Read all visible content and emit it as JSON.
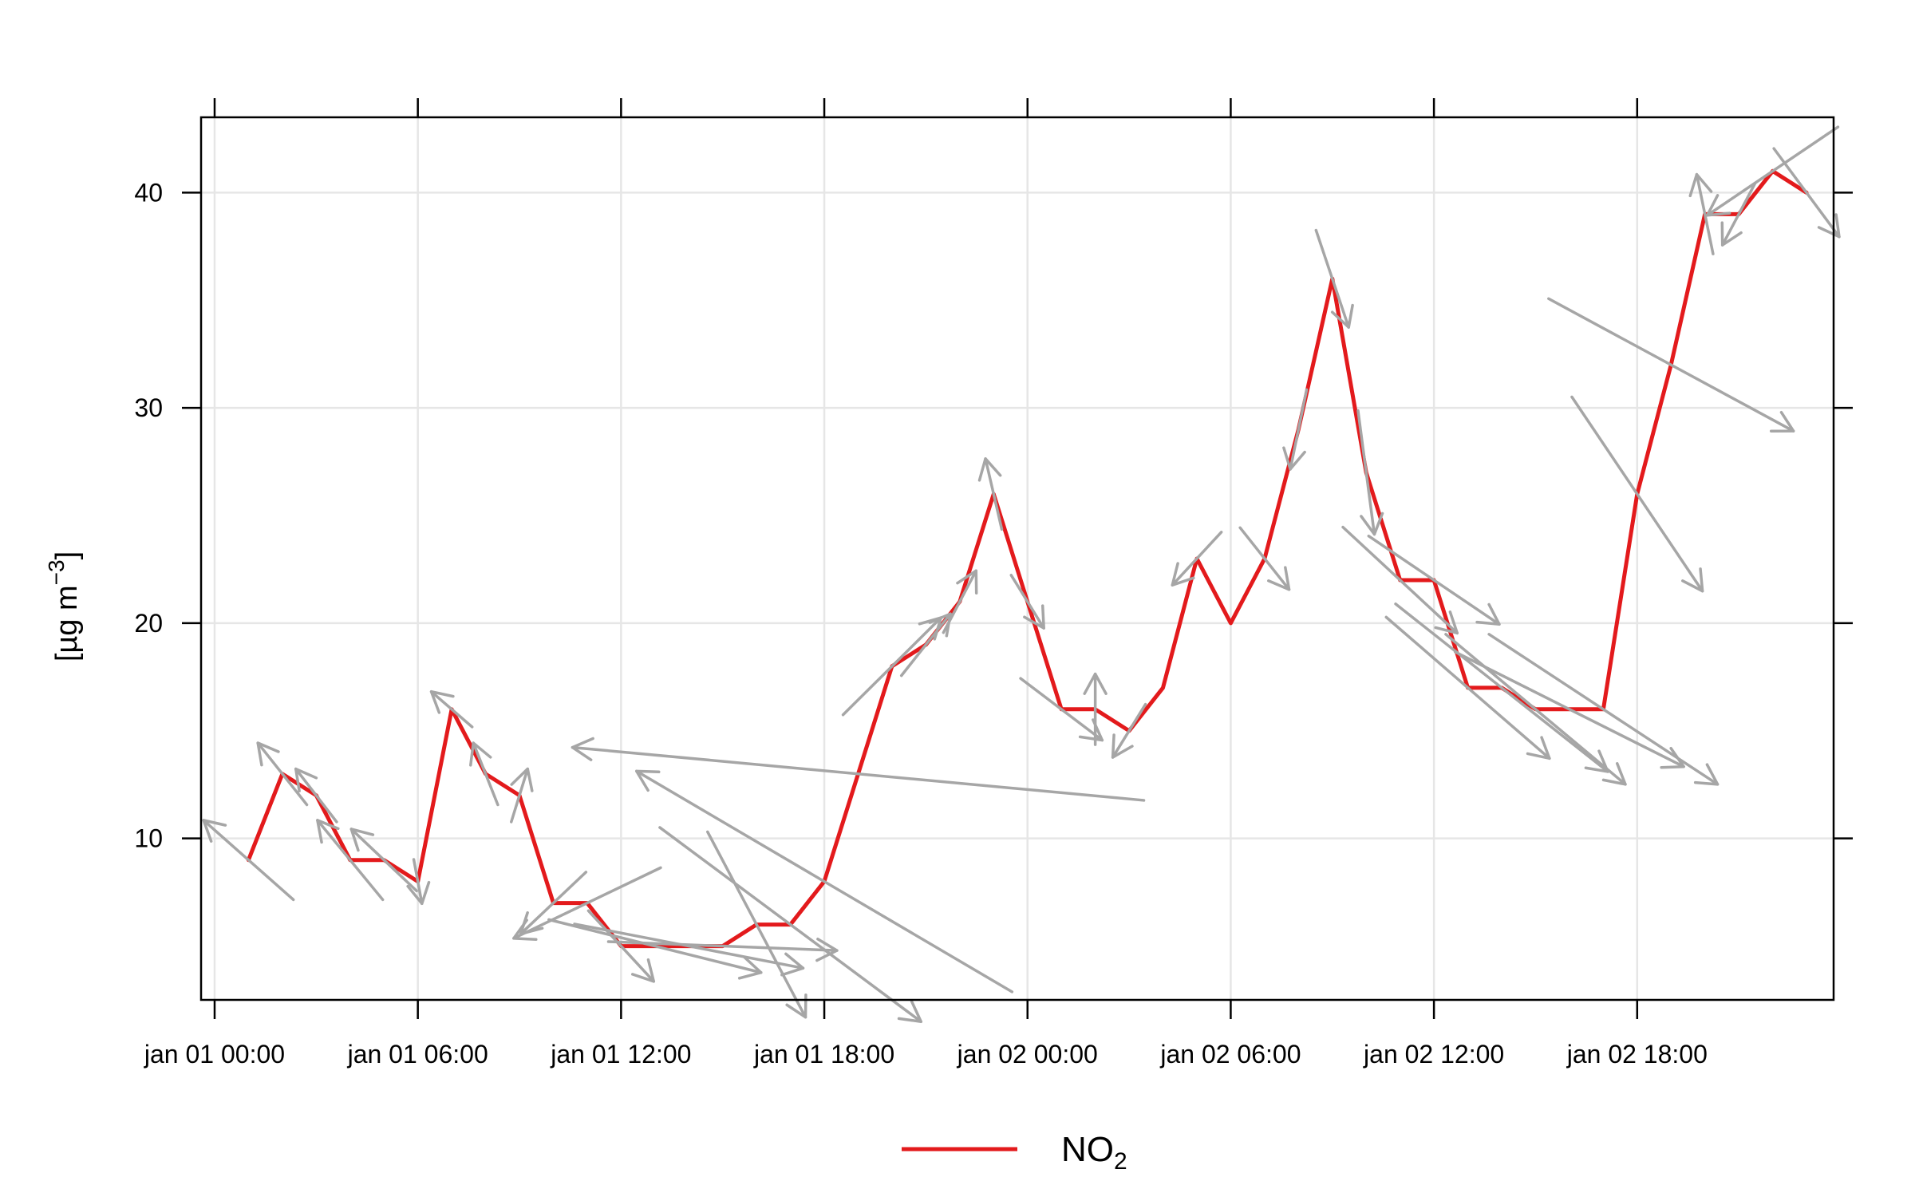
{
  "chart_data": {
    "type": "line",
    "title": "",
    "xlabel": "",
    "ylabel": {
      "prefix": "[µg m",
      "superscript": "−3",
      "suffix": "]"
    },
    "ylim": [
      2.5,
      43.5
    ],
    "yticks": [
      10,
      20,
      30,
      40
    ],
    "ytick_labels": [
      "10",
      "20",
      "30",
      "40"
    ],
    "xlim_hours": [
      -0.4,
      47.8
    ],
    "xticks_hours": [
      0,
      6,
      12,
      18,
      24,
      30,
      36,
      42
    ],
    "xtick_labels": [
      "jan 01 00:00",
      "jan 01 06:00",
      "jan 01 12:00",
      "jan 01 18:00",
      "jan 02 00:00",
      "jan 02 06:00",
      "jan 02 12:00",
      "jan 02 18:00"
    ],
    "grid": true,
    "legend_position": "bottom",
    "colors": {
      "series": "#e31a1c",
      "arrows": "#a6a6a6",
      "grid": "#e6e6e6"
    },
    "series": [
      {
        "name": {
          "main": "NO",
          "sub": "2"
        },
        "x_hours": [
          1,
          2,
          3,
          4,
          5,
          6,
          7,
          8,
          9,
          10,
          11,
          12,
          13,
          14,
          15,
          16,
          17,
          18,
          19,
          20,
          21,
          22,
          23,
          24,
          25,
          26,
          27,
          28,
          29,
          30,
          31,
          32,
          33,
          34,
          35,
          36,
          37,
          38,
          39,
          40,
          41,
          42,
          43,
          44,
          45,
          46,
          47
        ],
        "values": [
          9,
          13,
          12,
          9,
          9,
          8,
          16,
          13,
          12,
          7,
          7,
          5,
          5,
          5,
          5,
          6,
          6,
          8,
          13,
          18,
          19,
          21,
          26,
          21,
          16,
          16,
          15,
          17,
          23,
          20,
          23,
          29,
          36,
          27,
          22,
          22,
          17,
          17,
          16,
          16,
          16,
          26,
          32,
          39,
          39,
          41,
          40
        ]
      }
    ],
    "wind_arrows": [
      {
        "x": 1,
        "y": 9,
        "dx": -0.055,
        "dy": 0.09
      },
      {
        "x": 2,
        "y": 13,
        "dx": -0.03,
        "dy": 0.07
      },
      {
        "x": 3,
        "y": 12,
        "dx": -0.025,
        "dy": 0.06
      },
      {
        "x": 4,
        "y": 9,
        "dx": -0.04,
        "dy": 0.09
      },
      {
        "x": 5,
        "y": 9,
        "dx": -0.04,
        "dy": 0.07
      },
      {
        "x": 6,
        "y": 8,
        "dx": 0.005,
        "dy": -0.05
      },
      {
        "x": 7,
        "y": 16,
        "dx": -0.025,
        "dy": 0.04
      },
      {
        "x": 8,
        "y": 13,
        "dx": -0.015,
        "dy": 0.07
      },
      {
        "x": 9,
        "y": 12,
        "dx": 0.01,
        "dy": 0.06
      },
      {
        "x": 10,
        "y": 7,
        "dx": -0.04,
        "dy": -0.07
      },
      {
        "x": 11,
        "y": 7,
        "dx": -0.09,
        "dy": -0.08
      },
      {
        "x": 12,
        "y": 5,
        "dx": 0.04,
        "dy": -0.08
      },
      {
        "x": 13,
        "y": 5,
        "dx": 0.13,
        "dy": -0.06
      },
      {
        "x": 14,
        "y": 5,
        "dx": 0.14,
        "dy": -0.05
      },
      {
        "x": 15,
        "y": 5,
        "dx": 0.14,
        "dy": -0.01
      },
      {
        "x": 16,
        "y": 6,
        "dx": 0.06,
        "dy": -0.21
      },
      {
        "x": 17,
        "y": 6,
        "dx": 0.16,
        "dy": -0.22
      },
      {
        "x": 18,
        "y": 8,
        "dx": -0.23,
        "dy": 0.25
      },
      {
        "x": 19,
        "y": 13,
        "dx": -0.35,
        "dy": 0.06
      },
      {
        "x": 20,
        "y": 18,
        "dx": 0.06,
        "dy": 0.11
      },
      {
        "x": 21,
        "y": 19,
        "dx": 0.03,
        "dy": 0.07
      },
      {
        "x": 22,
        "y": 21,
        "dx": 0.02,
        "dy": 0.07
      },
      {
        "x": 23,
        "y": 26,
        "dx": -0.01,
        "dy": 0.08
      },
      {
        "x": 24,
        "y": 21,
        "dx": 0.02,
        "dy": -0.06
      },
      {
        "x": 25,
        "y": 16,
        "dx": 0.05,
        "dy": -0.07
      },
      {
        "x": 26,
        "y": 16,
        "dx": 0.0,
        "dy": 0.08
      },
      {
        "x": 27,
        "y": 15,
        "dx": -0.02,
        "dy": -0.06
      },
      {
        "x": 29,
        "y": 23,
        "dx": -0.03,
        "dy": -0.06
      },
      {
        "x": 31,
        "y": 23,
        "dx": 0.03,
        "dy": -0.07
      },
      {
        "x": 32,
        "y": 29,
        "dx": -0.01,
        "dy": -0.09
      },
      {
        "x": 33,
        "y": 36,
        "dx": 0.02,
        "dy": -0.11
      },
      {
        "x": 34,
        "y": 27,
        "dx": 0.01,
        "dy": -0.14
      },
      {
        "x": 35,
        "y": 22,
        "dx": 0.07,
        "dy": -0.12
      },
      {
        "x": 36,
        "y": 22,
        "dx": 0.08,
        "dy": -0.1
      },
      {
        "x": 37,
        "y": 17,
        "dx": 0.1,
        "dy": -0.16
      },
      {
        "x": 38,
        "y": 17,
        "dx": 0.13,
        "dy": -0.19
      },
      {
        "x": 39,
        "y": 16,
        "dx": 0.11,
        "dy": -0.17
      },
      {
        "x": 40,
        "y": 16,
        "dx": 0.14,
        "dy": -0.13
      },
      {
        "x": 41,
        "y": 16,
        "dx": 0.14,
        "dy": -0.17
      },
      {
        "x": 42,
        "y": 26,
        "dx": 0.08,
        "dy": -0.22
      },
      {
        "x": 43,
        "y": 32,
        "dx": 0.15,
        "dy": -0.15
      },
      {
        "x": 44,
        "y": 39,
        "dx": -0.01,
        "dy": 0.09
      },
      {
        "x": 45,
        "y": 39,
        "dx": -0.02,
        "dy": -0.07
      },
      {
        "x": 46,
        "y": 41,
        "dx": -0.08,
        "dy": -0.1
      },
      {
        "x": 47,
        "y": 40,
        "dx": 0.04,
        "dy": -0.1
      }
    ]
  }
}
